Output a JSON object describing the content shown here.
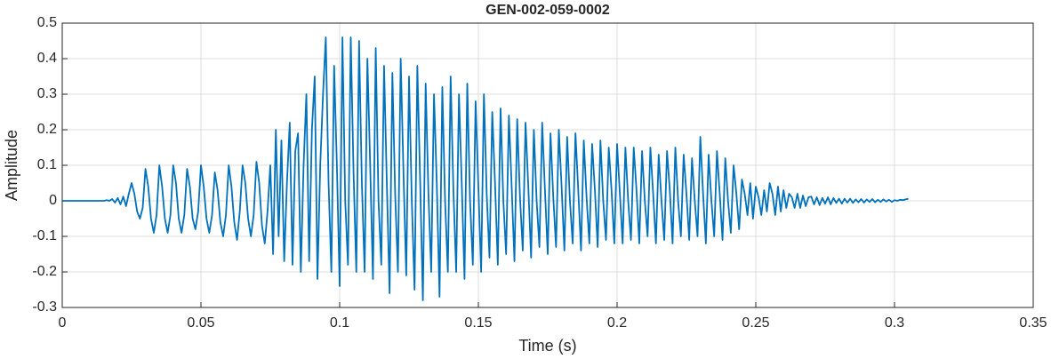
{
  "chart_data": {
    "type": "line",
    "title": "GEN-002-059-0002",
    "xlabel": "Time (s)",
    "ylabel": "Amplitude",
    "xlim": [
      0,
      0.35
    ],
    "ylim": [
      -0.3,
      0.5
    ],
    "xticks": [
      0,
      0.05,
      0.1,
      0.15,
      0.2,
      0.25,
      0.3,
      0.35
    ],
    "yticks": [
      -0.3,
      -0.2,
      -0.1,
      0,
      0.1,
      0.2,
      0.3,
      0.4,
      0.5
    ],
    "grid": true,
    "x": [
      0,
      0.001,
      0.002,
      0.003,
      0.004,
      0.005,
      0.006,
      0.007,
      0.008,
      0.009,
      0.01,
      0.011,
      0.012,
      0.013,
      0.014,
      0.015,
      0.016,
      0.017,
      0.018,
      0.019,
      0.02,
      0.021,
      0.022,
      0.023,
      0.024,
      0.025,
      0.026,
      0.027,
      0.028,
      0.029,
      0.03,
      0.031,
      0.032,
      0.033,
      0.034,
      0.035,
      0.036,
      0.037,
      0.038,
      0.039,
      0.04,
      0.041,
      0.042,
      0.043,
      0.044,
      0.045,
      0.046,
      0.047,
      0.048,
      0.049,
      0.05,
      0.051,
      0.052,
      0.053,
      0.054,
      0.055,
      0.056,
      0.057,
      0.058,
      0.059,
      0.06,
      0.061,
      0.062,
      0.063,
      0.064,
      0.065,
      0.066,
      0.067,
      0.068,
      0.069,
      0.07,
      0.071,
      0.072,
      0.073,
      0.074,
      0.075,
      0.076,
      0.077,
      0.078,
      0.079,
      0.08,
      0.081,
      0.082,
      0.083,
      0.084,
      0.085,
      0.086,
      0.087,
      0.088,
      0.089,
      0.09,
      0.091,
      0.092,
      0.093,
      0.094,
      0.095,
      0.096,
      0.097,
      0.098,
      0.099,
      0.1,
      0.101,
      0.102,
      0.103,
      0.104,
      0.105,
      0.106,
      0.107,
      0.108,
      0.109,
      0.11,
      0.111,
      0.112,
      0.113,
      0.114,
      0.115,
      0.116,
      0.117,
      0.118,
      0.119,
      0.12,
      0.121,
      0.122,
      0.123,
      0.124,
      0.125,
      0.126,
      0.127,
      0.128,
      0.129,
      0.13,
      0.131,
      0.132,
      0.133,
      0.134,
      0.135,
      0.136,
      0.137,
      0.138,
      0.139,
      0.14,
      0.141,
      0.142,
      0.143,
      0.144,
      0.145,
      0.146,
      0.147,
      0.148,
      0.149,
      0.15,
      0.151,
      0.152,
      0.153,
      0.154,
      0.155,
      0.156,
      0.157,
      0.158,
      0.159,
      0.16,
      0.161,
      0.162,
      0.163,
      0.164,
      0.165,
      0.166,
      0.167,
      0.168,
      0.169,
      0.17,
      0.171,
      0.172,
      0.173,
      0.174,
      0.175,
      0.176,
      0.177,
      0.178,
      0.179,
      0.18,
      0.181,
      0.182,
      0.183,
      0.184,
      0.185,
      0.186,
      0.187,
      0.188,
      0.189,
      0.19,
      0.191,
      0.192,
      0.193,
      0.194,
      0.195,
      0.196,
      0.197,
      0.198,
      0.199,
      0.2,
      0.201,
      0.202,
      0.203,
      0.204,
      0.205,
      0.206,
      0.207,
      0.208,
      0.209,
      0.21,
      0.211,
      0.212,
      0.213,
      0.214,
      0.215,
      0.216,
      0.217,
      0.218,
      0.219,
      0.22,
      0.221,
      0.222,
      0.223,
      0.224,
      0.225,
      0.226,
      0.227,
      0.228,
      0.229,
      0.23,
      0.231,
      0.232,
      0.233,
      0.234,
      0.235,
      0.236,
      0.237,
      0.238,
      0.239,
      0.24,
      0.241,
      0.242,
      0.243,
      0.244,
      0.245,
      0.246,
      0.247,
      0.248,
      0.249,
      0.25,
      0.251,
      0.252,
      0.253,
      0.254,
      0.255,
      0.256,
      0.257,
      0.258,
      0.259,
      0.26,
      0.261,
      0.262,
      0.263,
      0.264,
      0.265,
      0.266,
      0.267,
      0.268,
      0.269,
      0.27,
      0.271,
      0.272,
      0.273,
      0.274,
      0.275,
      0.276,
      0.277,
      0.278,
      0.279,
      0.28,
      0.281,
      0.282,
      0.283,
      0.284,
      0.285,
      0.286,
      0.287,
      0.288,
      0.289,
      0.29,
      0.291,
      0.292,
      0.293,
      0.294,
      0.295,
      0.296,
      0.297,
      0.298,
      0.299,
      0.3,
      0.301,
      0.302,
      0.303,
      0.304,
      0.305
    ],
    "series": [
      {
        "color": "#0072bd",
        "values": [
          0,
          0,
          0,
          0,
          0,
          0,
          0,
          0,
          0,
          0,
          0,
          0,
          0,
          0,
          0,
          0,
          0.002,
          0,
          0.005,
          -0.005,
          0.008,
          -0.01,
          0.012,
          -0.015,
          0.02,
          0.05,
          0.02,
          -0.03,
          -0.05,
          -0.02,
          0.09,
          0.04,
          -0.05,
          -0.09,
          -0.04,
          0.1,
          0.04,
          -0.05,
          -0.09,
          -0.04,
          0.1,
          0.05,
          -0.05,
          -0.09,
          -0.04,
          0.09,
          0.04,
          -0.05,
          -0.08,
          -0.03,
          0.1,
          0.04,
          -0.05,
          -0.09,
          -0.04,
          0.08,
          0.03,
          -0.06,
          -0.1,
          -0.04,
          0.1,
          0.04,
          -0.06,
          -0.11,
          -0.03,
          0.1,
          0.05,
          -0.05,
          -0.1,
          -0.04,
          0.11,
          0.05,
          -0.07,
          -0.12,
          -0.03,
          0.1,
          -0.15,
          0.2,
          -0.1,
          0.17,
          -0.17,
          0.05,
          0.22,
          -0.18,
          0.14,
          0.19,
          -0.2,
          0.1,
          0.3,
          -0.17,
          0.2,
          0.35,
          -0.22,
          0.1,
          0.3,
          0.46,
          0.05,
          -0.2,
          0.38,
          0.1,
          -0.24,
          0.46,
          0.0,
          -0.18,
          0.46,
          0.08,
          -0.2,
          0.45,
          0.05,
          -0.2,
          0.4,
          0.1,
          -0.22,
          0.43,
          0.0,
          -0.18,
          0.38,
          0.05,
          -0.26,
          0.36,
          0.02,
          -0.2,
          0.4,
          0.08,
          -0.21,
          0.35,
          0.0,
          -0.25,
          0.38,
          0.06,
          -0.28,
          0.33,
          0.02,
          -0.2,
          0.3,
          0.05,
          -0.27,
          0.32,
          0.0,
          -0.2,
          0.35,
          0.03,
          -0.2,
          0.3,
          0.05,
          -0.22,
          0.33,
          0,
          -0.18,
          0.28,
          0.04,
          -0.2,
          0.3,
          0.02,
          -0.16,
          0.25,
          0.05,
          -0.18,
          0.26,
          0,
          -0.15,
          0.24,
          0.04,
          -0.17,
          0.23,
          0.01,
          -0.14,
          0.22,
          0.04,
          -0.16,
          0.2,
          0,
          -0.13,
          0.22,
          0.03,
          -0.15,
          0.19,
          0.01,
          -0.13,
          0.2,
          0.04,
          -0.14,
          0.18,
          0,
          -0.12,
          0.19,
          0.03,
          -0.14,
          0.17,
          0.01,
          -0.12,
          0.16,
          0.03,
          -0.13,
          0.17,
          0,
          -0.11,
          0.15,
          0.03,
          -0.12,
          0.16,
          0.02,
          -0.12,
          0.15,
          0,
          -0.11,
          0.15,
          0.03,
          -0.12,
          0.14,
          0,
          -0.1,
          0.15,
          0.02,
          -0.12,
          0.13,
          0,
          -0.11,
          0.14,
          0.03,
          -0.12,
          0.15,
          0,
          -0.1,
          0.13,
          0.02,
          -0.11,
          0.12,
          0,
          -0.1,
          0.18,
          0.02,
          -0.12,
          0.13,
          0,
          -0.1,
          0.14,
          0.02,
          -0.11,
          0.12,
          0,
          -0.09,
          0.1,
          0.02,
          -0.08,
          0.06,
          0.02,
          -0.04,
          0.05,
          -0.05,
          0.04,
          0.01,
          -0.04,
          0.03,
          -0.03,
          0.05,
          0.02,
          -0.04,
          0.04,
          -0.03,
          0.03,
          -0.02,
          0.02,
          0.01,
          -0.02,
          0.02,
          -0.02,
          0.015,
          -0.015,
          0.01,
          0.012,
          -0.01,
          0.01,
          -0.012,
          0.008,
          -0.008,
          0.01,
          -0.01,
          0.008,
          -0.006,
          0.006,
          -0.008,
          0.006,
          -0.005,
          0.006,
          -0.006,
          0.004,
          -0.004,
          0.005,
          -0.005,
          0.004,
          -0.003,
          0.005,
          -0.004,
          0.003,
          -0.003,
          0.004,
          -0.002,
          0.003,
          -0.003,
          0.002,
          0,
          0.003,
          0.002,
          0.004,
          0.006
        ]
      }
    ]
  }
}
